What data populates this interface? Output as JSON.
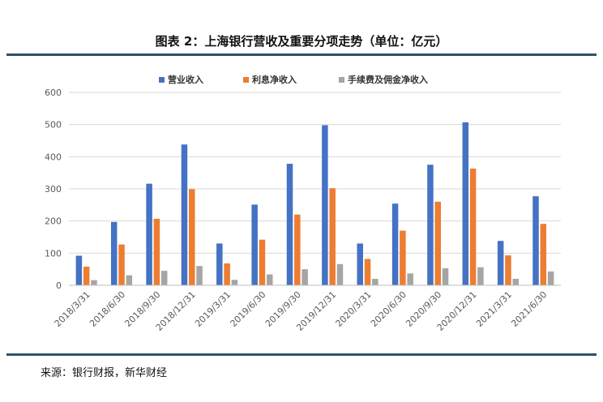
{
  "title": "图表 2：上海银行营收及重要分项走势（单位：亿元）",
  "source": "来源：银行财报，新华财经",
  "chart_data": {
    "type": "bar",
    "categories": [
      "2018/3/31",
      "2018/6/30",
      "2018/9/30",
      "2018/12/31",
      "2019/3/31",
      "2019/6/30",
      "2019/9/30",
      "2019/12/31",
      "2020/3/31",
      "2020/6/30",
      "2020/9/30",
      "2020/12/31",
      "2021/3/31",
      "2021/6/30"
    ],
    "series": [
      {
        "name": "营业收入",
        "color": "#4472c4",
        "values": [
          92,
          197,
          316,
          438,
          130,
          251,
          378,
          498,
          130,
          254,
          375,
          507,
          138,
          277
        ]
      },
      {
        "name": "利息净收入",
        "color": "#ed7d31",
        "values": [
          58,
          127,
          207,
          299,
          68,
          142,
          220,
          302,
          82,
          170,
          260,
          363,
          93,
          191
        ]
      },
      {
        "name": "手续费及佣金净收入",
        "color": "#a5a5a5",
        "values": [
          16,
          31,
          45,
          60,
          17,
          34,
          50,
          66,
          20,
          37,
          53,
          56,
          20,
          43
        ]
      }
    ],
    "yticks": [
      0,
      100,
      200,
      300,
      400,
      500,
      600
    ],
    "ylim": [
      0,
      600
    ],
    "grid": true,
    "legend": "top-center"
  }
}
